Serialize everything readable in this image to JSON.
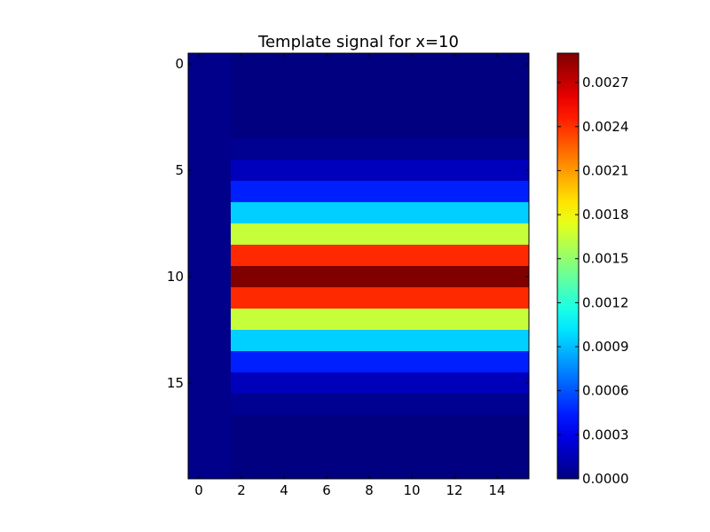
{
  "chart_data": [
    {
      "type": "heatmap",
      "title": "Template signal for x=10",
      "xlabel": "",
      "ylabel": "",
      "n_cols": 16,
      "n_rows": 20,
      "xlim": [
        -0.5,
        15.5
      ],
      "ylim": [
        19.5,
        -0.5
      ],
      "x_ticks": [
        0,
        2,
        4,
        6,
        8,
        10,
        12,
        14
      ],
      "y_ticks": [
        0,
        5,
        10,
        15
      ],
      "colormap": "jet",
      "grid": false,
      "column_0_1_value": 3e-05,
      "columns_2_15_row_values": [
        0.0,
        0.0,
        0.0,
        0.0,
        5e-05,
        0.00017,
        0.00045,
        0.00095,
        0.00165,
        0.00242,
        0.0029,
        0.00242,
        0.00165,
        0.00095,
        0.00045,
        0.00017,
        5e-05,
        0.0,
        0.0,
        0.0
      ]
    },
    {
      "type": "colorbar",
      "vmin": 0.0,
      "vmax": 0.0029,
      "tick_values": [
        0.0,
        0.0003,
        0.0006,
        0.0009,
        0.0012,
        0.0015,
        0.0018,
        0.0021,
        0.0024,
        0.0027
      ],
      "tick_labels": [
        "0.0000",
        "0.0003",
        "0.0006",
        "0.0009",
        "0.0012",
        "0.0015",
        "0.0018",
        "0.0021",
        "0.0024",
        "0.0027"
      ]
    }
  ]
}
